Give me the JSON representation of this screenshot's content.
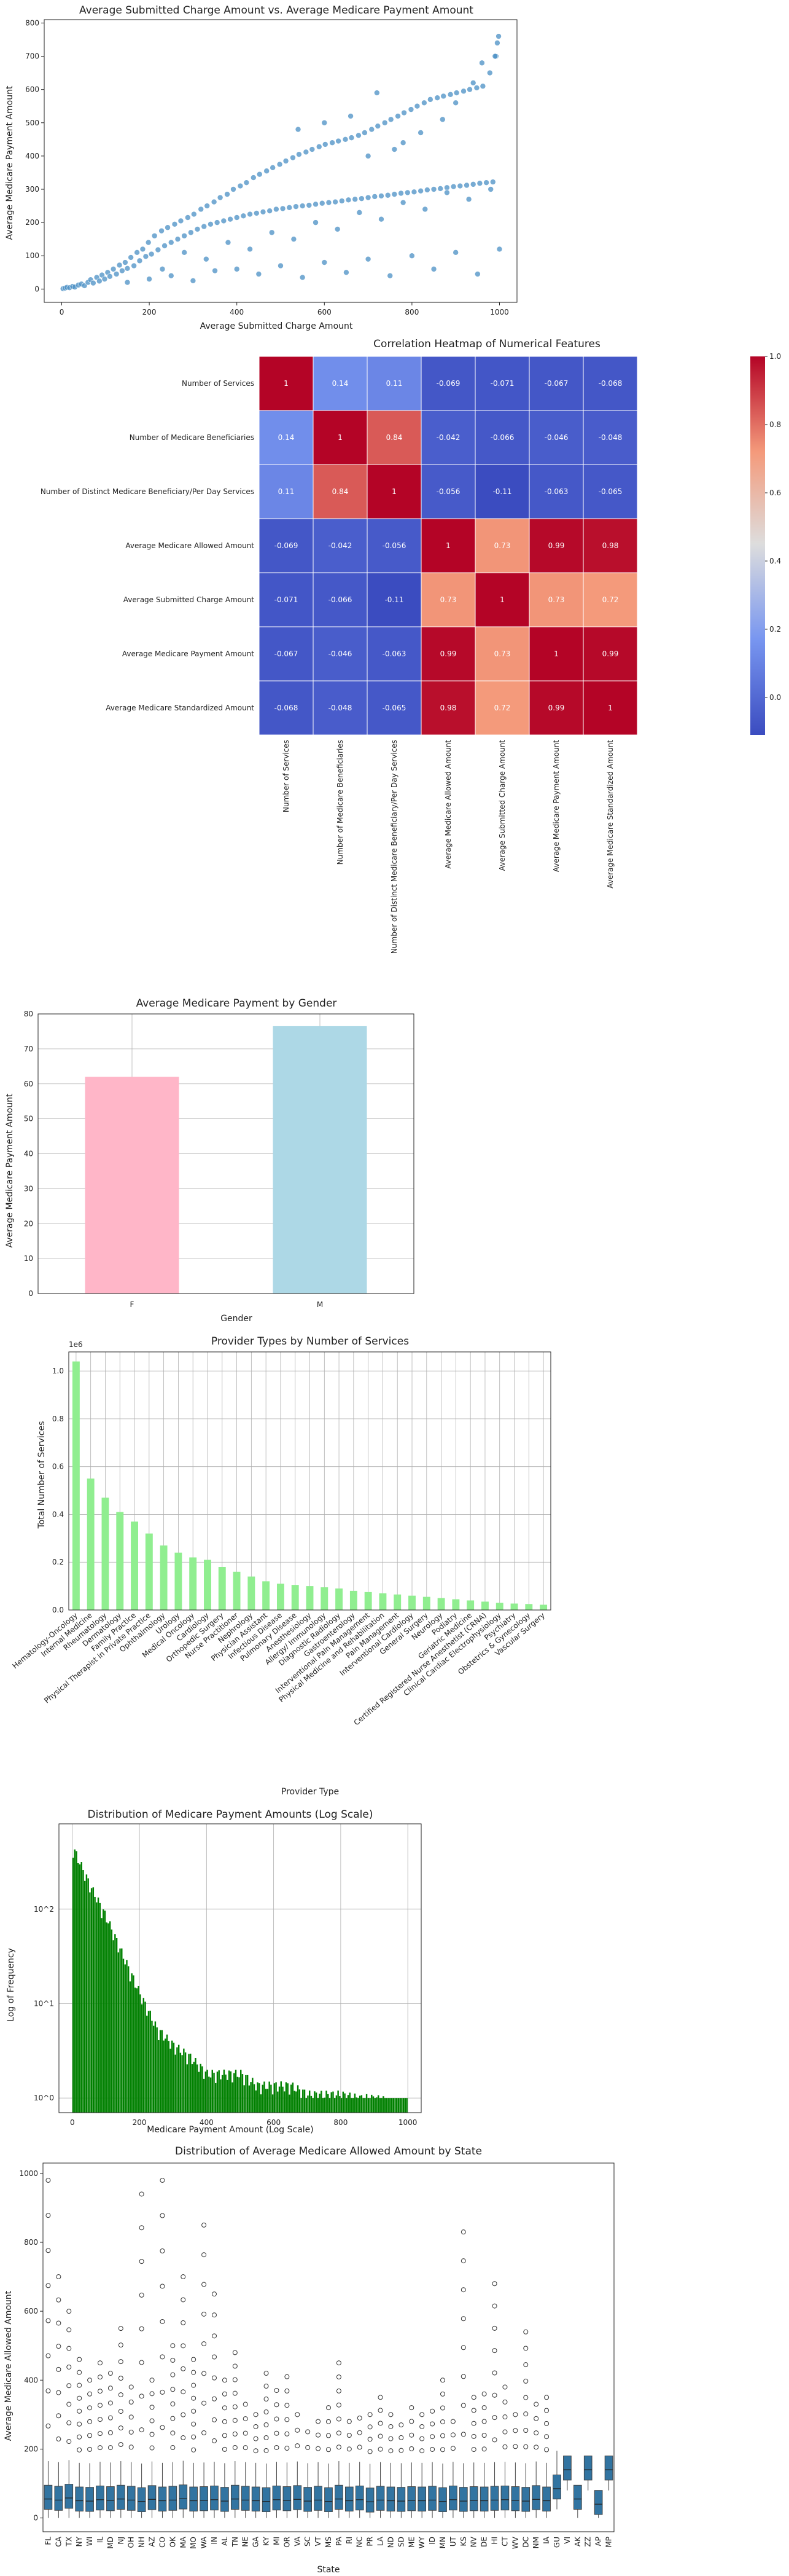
{
  "chart_data": [
    {
      "type": "scatter",
      "title": "Average Submitted Charge Amount vs. Average Medicare Payment Amount",
      "xlabel": "Average Submitted Charge Amount",
      "ylabel": "Average Medicare Payment Amount",
      "xlim": [
        -40,
        1040
      ],
      "ylim": [
        -40,
        810
      ],
      "xticks": [
        0,
        200,
        400,
        600,
        800,
        1000
      ],
      "yticks": [
        0,
        100,
        200,
        300,
        400,
        500,
        600,
        700,
        800
      ],
      "color": "#4a8fc4",
      "points": [
        [
          3,
          1
        ],
        [
          8,
          3
        ],
        [
          12,
          5
        ],
        [
          18,
          4
        ],
        [
          25,
          8
        ],
        [
          30,
          6
        ],
        [
          38,
          12
        ],
        [
          45,
          15
        ],
        [
          52,
          10
        ],
        [
          60,
          20
        ],
        [
          66,
          28
        ],
        [
          72,
          18
        ],
        [
          80,
          35
        ],
        [
          86,
          24
        ],
        [
          92,
          42
        ],
        [
          98,
          30
        ],
        [
          105,
          50
        ],
        [
          110,
          38
        ],
        [
          118,
          60
        ],
        [
          125,
          45
        ],
        [
          132,
          72
        ],
        [
          138,
          55
        ],
        [
          145,
          80
        ],
        [
          150,
          62
        ],
        [
          158,
          95
        ],
        [
          165,
          70
        ],
        [
          172,
          110
        ],
        [
          178,
          85
        ],
        [
          185,
          120
        ],
        [
          192,
          98
        ],
        [
          198,
          140
        ],
        [
          205,
          105
        ],
        [
          212,
          160
        ],
        [
          220,
          118
        ],
        [
          228,
          175
        ],
        [
          235,
          130
        ],
        [
          242,
          185
        ],
        [
          250,
          140
        ],
        [
          258,
          195
        ],
        [
          265,
          150
        ],
        [
          272,
          205
        ],
        [
          280,
          160
        ],
        [
          288,
          215
        ],
        [
          295,
          170
        ],
        [
          302,
          225
        ],
        [
          310,
          180
        ],
        [
          318,
          240
        ],
        [
          325,
          188
        ],
        [
          332,
          250
        ],
        [
          340,
          195
        ],
        [
          348,
          262
        ],
        [
          355,
          200
        ],
        [
          362,
          275
        ],
        [
          370,
          205
        ],
        [
          378,
          285
        ],
        [
          385,
          210
        ],
        [
          392,
          300
        ],
        [
          400,
          215
        ],
        [
          408,
          310
        ],
        [
          415,
          220
        ],
        [
          422,
          320
        ],
        [
          430,
          225
        ],
        [
          438,
          335
        ],
        [
          445,
          228
        ],
        [
          452,
          345
        ],
        [
          460,
          232
        ],
        [
          468,
          355
        ],
        [
          475,
          235
        ],
        [
          482,
          365
        ],
        [
          490,
          240
        ],
        [
          498,
          375
        ],
        [
          505,
          242
        ],
        [
          512,
          385
        ],
        [
          520,
          245
        ],
        [
          528,
          395
        ],
        [
          535,
          248
        ],
        [
          542,
          405
        ],
        [
          550,
          250
        ],
        [
          558,
          412
        ],
        [
          565,
          252
        ],
        [
          572,
          420
        ],
        [
          580,
          255
        ],
        [
          588,
          428
        ],
        [
          595,
          258
        ],
        [
          602,
          435
        ],
        [
          610,
          260
        ],
        [
          618,
          440
        ],
        [
          625,
          262
        ],
        [
          632,
          445
        ],
        [
          640,
          265
        ],
        [
          648,
          450
        ],
        [
          655,
          268
        ],
        [
          662,
          455
        ],
        [
          670,
          270
        ],
        [
          678,
          462
        ],
        [
          685,
          272
        ],
        [
          692,
          470
        ],
        [
          700,
          275
        ],
        [
          708,
          480
        ],
        [
          715,
          278
        ],
        [
          722,
          490
        ],
        [
          730,
          280
        ],
        [
          738,
          500
        ],
        [
          745,
          282
        ],
        [
          752,
          510
        ],
        [
          760,
          285
        ],
        [
          768,
          520
        ],
        [
          775,
          288
        ],
        [
          782,
          530
        ],
        [
          790,
          290
        ],
        [
          798,
          540
        ],
        [
          805,
          292
        ],
        [
          812,
          550
        ],
        [
          820,
          295
        ],
        [
          828,
          560
        ],
        [
          835,
          298
        ],
        [
          842,
          570
        ],
        [
          850,
          300
        ],
        [
          858,
          575
        ],
        [
          865,
          302
        ],
        [
          872,
          580
        ],
        [
          880,
          305
        ],
        [
          888,
          585
        ],
        [
          895,
          308
        ],
        [
          902,
          590
        ],
        [
          910,
          310
        ],
        [
          918,
          595
        ],
        [
          925,
          312
        ],
        [
          932,
          600
        ],
        [
          940,
          315
        ],
        [
          948,
          605
        ],
        [
          955,
          318
        ],
        [
          962,
          610
        ],
        [
          970,
          320
        ],
        [
          978,
          650
        ],
        [
          985,
          322
        ],
        [
          992,
          700
        ],
        [
          998,
          760
        ],
        [
          150,
          20
        ],
        [
          200,
          30
        ],
        [
          250,
          40
        ],
        [
          300,
          25
        ],
        [
          350,
          55
        ],
        [
          400,
          60
        ],
        [
          450,
          45
        ],
        [
          500,
          70
        ],
        [
          550,
          35
        ],
        [
          600,
          80
        ],
        [
          650,
          50
        ],
        [
          700,
          90
        ],
        [
          750,
          40
        ],
        [
          800,
          100
        ],
        [
          850,
          60
        ],
        [
          900,
          110
        ],
        [
          950,
          45
        ],
        [
          1000,
          120
        ],
        [
          230,
          60
        ],
        [
          330,
          90
        ],
        [
          430,
          120
        ],
        [
          530,
          150
        ],
        [
          630,
          180
        ],
        [
          730,
          210
        ],
        [
          830,
          240
        ],
        [
          930,
          270
        ],
        [
          280,
          110
        ],
        [
          380,
          140
        ],
        [
          480,
          170
        ],
        [
          580,
          200
        ],
        [
          680,
          230
        ],
        [
          780,
          260
        ],
        [
          880,
          290
        ],
        [
          980,
          300
        ],
        [
          990,
          700
        ],
        [
          995,
          740
        ],
        [
          960,
          680
        ],
        [
          940,
          620
        ],
        [
          720,
          590
        ],
        [
          660,
          520
        ],
        [
          600,
          500
        ],
        [
          540,
          480
        ],
        [
          900,
          560
        ],
        [
          870,
          510
        ],
        [
          820,
          470
        ],
        [
          780,
          440
        ],
        [
          760,
          420
        ],
        [
          700,
          400
        ]
      ]
    },
    {
      "type": "heatmap",
      "title": "Correlation Heatmap of Numerical Features",
      "labels": [
        "Number of Services",
        "Number of Medicare Beneficiaries",
        "Number of Distinct Medicare Beneficiary/Per Day Services",
        "Average Medicare Allowed Amount",
        "Average Submitted Charge Amount",
        "Average Medicare Payment Amount",
        "Average Medicare Standardized Amount"
      ],
      "matrix": [
        [
          1,
          0.14,
          0.11,
          -0.069,
          -0.071,
          -0.067,
          -0.068
        ],
        [
          0.14,
          1,
          0.84,
          -0.042,
          -0.066,
          -0.046,
          -0.048
        ],
        [
          0.11,
          0.84,
          1,
          -0.056,
          -0.11,
          -0.063,
          -0.065
        ],
        [
          -0.069,
          -0.042,
          -0.056,
          1,
          0.73,
          0.99,
          0.98
        ],
        [
          -0.071,
          -0.066,
          -0.11,
          0.73,
          1,
          0.73,
          0.72
        ],
        [
          -0.067,
          -0.046,
          -0.063,
          0.99,
          0.73,
          1,
          0.99
        ],
        [
          -0.068,
          -0.048,
          -0.065,
          0.98,
          0.72,
          0.99,
          1
        ]
      ],
      "colorbar": {
        "range": [
          -0.11,
          1
        ],
        "ticks": [
          0.0,
          0.2,
          0.4,
          0.6,
          0.8,
          1.0
        ]
      }
    },
    {
      "type": "bar",
      "title": "Average Medicare Payment by Gender",
      "xlabel": "Gender",
      "ylabel": "Average Medicare Payment Amount",
      "categories": [
        "F",
        "M"
      ],
      "values": [
        62.0,
        76.5
      ],
      "colors": [
        "#ffb6c8",
        "#add8e6"
      ],
      "ylim": [
        0,
        80
      ],
      "yticks": [
        0,
        10,
        20,
        30,
        40,
        50,
        60,
        70,
        80
      ]
    },
    {
      "type": "bar",
      "title": "Provider Types by Number of Services",
      "xlabel": "Provider Type",
      "ylabel": "Total Number of Services",
      "offset_label": "1e6",
      "color": "#90ee90",
      "ylim": [
        0,
        1.08
      ],
      "yticks": [
        0.0,
        0.2,
        0.4,
        0.6,
        0.8,
        1.0
      ],
      "categories": [
        "Hematology-Oncology",
        "Internal Medicine",
        "Rheumatology",
        "Dermatology",
        "Family Practice",
        "Physical Therapist in Private Practice",
        "Ophthalmology",
        "Urology",
        "Medical Oncology",
        "Cardiology",
        "Orthopedic Surgery",
        "Nurse Practitioner",
        "Nephrology",
        "Physician Assistant",
        "Infectious Disease",
        "Pulmonary Disease",
        "Anesthesiology",
        "Allergy/ Immunology",
        "Diagnostic Radiology",
        "Gastroenterology",
        "Interventional Pain Management",
        "Physical Medicine and Rehabilitation",
        "Pain Management",
        "Interventional Cardiology",
        "General Surgery",
        "Neurology",
        "Podiatry",
        "Geriatric Medicine",
        "Certified Registered Nurse Anesthetist (CRNA)",
        "Clinical Cardiac Electrophysiology",
        "Psychiatry",
        "Obstetrics & Gynecology",
        "Vascular Surgery"
      ],
      "values": [
        1.04,
        0.55,
        0.47,
        0.41,
        0.37,
        0.32,
        0.27,
        0.24,
        0.22,
        0.21,
        0.18,
        0.16,
        0.14,
        0.12,
        0.11,
        0.105,
        0.1,
        0.095,
        0.09,
        0.08,
        0.075,
        0.07,
        0.065,
        0.06,
        0.055,
        0.05,
        0.045,
        0.04,
        0.035,
        0.03,
        0.027,
        0.025,
        0.022
      ]
    },
    {
      "type": "bar",
      "title": "Distribution of Medicare Payment Amounts (Log Scale)",
      "xlabel": "Medicare Payment Amount (Log Scale)",
      "ylabel": "Log of Frequency",
      "color": "#008000",
      "yscale": "log",
      "xlim": [
        -40,
        1040
      ],
      "ylim": [
        0.7,
        800
      ],
      "xticks": [
        0,
        200,
        400,
        600,
        800,
        1000
      ],
      "yticks": [
        "10^0",
        "10^1",
        "10^2"
      ],
      "bins": [
        [
          0,
          500
        ],
        [
          50,
          200
        ],
        [
          100,
          90
        ],
        [
          150,
          35
        ],
        [
          200,
          14
        ],
        [
          250,
          6
        ],
        [
          300,
          4
        ],
        [
          350,
          3
        ],
        [
          400,
          2
        ],
        [
          450,
          2
        ],
        [
          500,
          2
        ],
        [
          550,
          1.5
        ],
        [
          600,
          1.5
        ],
        [
          650,
          1.5
        ],
        [
          700,
          1.2
        ],
        [
          750,
          1.2
        ],
        [
          800,
          1.2
        ],
        [
          850,
          1.1
        ],
        [
          900,
          1.1
        ],
        [
          950,
          1
        ],
        [
          1000,
          1
        ]
      ]
    },
    {
      "type": "box",
      "title": "Distribution of Average Medicare Allowed Amount by State",
      "xlabel": "State",
      "ylabel": "Average Medicare Allowed Amount",
      "color": "#3274a1",
      "ylim": [
        -40,
        1030
      ],
      "yticks": [
        0,
        200,
        400,
        600,
        800,
        1000
      ],
      "categories": [
        "FL",
        "CA",
        "TX",
        "NY",
        "WI",
        "IL",
        "MD",
        "NJ",
        "OH",
        "NH",
        "AZ",
        "CO",
        "OK",
        "MA",
        "MO",
        "WA",
        "IN",
        "AL",
        "TN",
        "NE",
        "GA",
        "KY",
        "MI",
        "OR",
        "VA",
        "SC",
        "VT",
        "MS",
        "PA",
        "RI",
        "NC",
        "PR",
        "LA",
        "ND",
        "SD",
        "ME",
        "WY",
        "ID",
        "MN",
        "UT",
        "KS",
        "NV",
        "DE",
        "HI",
        "CT",
        "WV",
        "DC",
        "NM",
        "IA",
        "GU",
        "VI",
        "AK",
        "ZZ",
        "AP",
        "MP"
      ],
      "medians": [
        55,
        52,
        58,
        50,
        49,
        53,
        51,
        55,
        52,
        48,
        54,
        50,
        52,
        56,
        50,
        51,
        53,
        49,
        55,
        52,
        50,
        48,
        53,
        51,
        54,
        49,
        52,
        48,
        55,
        50,
        53,
        47,
        52,
        50,
        49,
        51,
        50,
        52,
        48,
        53,
        49,
        51,
        50,
        52,
        53,
        51,
        49,
        54,
        50,
        85,
        140,
        55,
        140,
        40,
        140
      ],
      "outlier_max": [
        980,
        700,
        600,
        460,
        400,
        450,
        420,
        550,
        380,
        940,
        400,
        980,
        500,
        700,
        460,
        850,
        650,
        400,
        480,
        330,
        300,
        420,
        370,
        410,
        300,
        250,
        280,
        320,
        450,
        280,
        290,
        300,
        350,
        300,
        270,
        320,
        300,
        310,
        400,
        280,
        830,
        350,
        360,
        680,
        380,
        300,
        540,
        330,
        350,
        200,
        150,
        60,
        140,
        40,
        140
      ]
    }
  ]
}
